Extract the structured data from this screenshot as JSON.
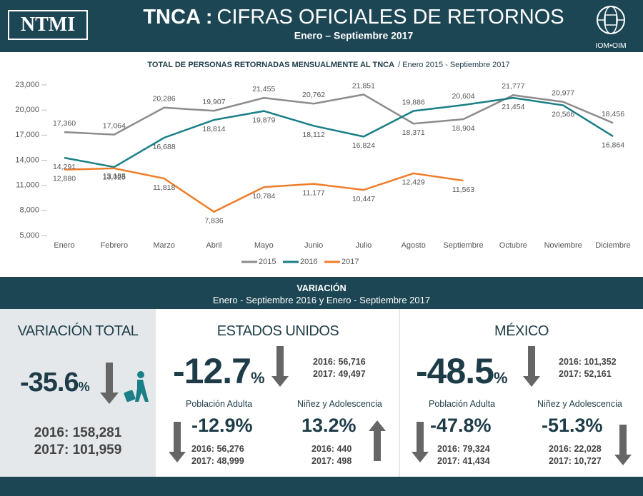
{
  "header": {
    "logo": "NTMI",
    "title_bold": "TNCA :",
    "title_light": "CIFRAS OFICIALES DE RETORNOS",
    "subtitle": "Enero – Septiembre 2017",
    "partner_logo": "IOM•OIM"
  },
  "chart_data": {
    "type": "line",
    "title": "TOTAL DE PERSONAS RETORNADAS MENSUALMENTE AL TNCA",
    "subtitle": "/ Enero 2015 - Septiembre 2017",
    "categories": [
      "Enero",
      "Febrero",
      "Marzo",
      "Abril",
      "Mayo",
      "Junio",
      "Julio",
      "Agosto",
      "Septiembre",
      "Octubre",
      "Noviembre",
      "Diciembre"
    ],
    "series": [
      {
        "name": "2015",
        "color": "#8c8c8c",
        "values": [
          17360,
          17064,
          20286,
          19907,
          21455,
          20762,
          21851,
          18371,
          18904,
          21777,
          20977,
          18456
        ],
        "value_labels": [
          "17,360",
          "17,064",
          "20,286",
          "19,907",
          "21,455",
          "20,762",
          "21,851",
          "18,371",
          "18,904",
          "21,777",
          "20,977",
          "18,456"
        ]
      },
      {
        "name": "2016",
        "color": "#1a7f86",
        "values": [
          14291,
          13183,
          16688,
          18814,
          19879,
          18112,
          16824,
          19886,
          20604,
          21454,
          20566,
          16864
        ],
        "value_labels": [
          "14,291",
          "13,183",
          "16,688",
          "18,814",
          "19,879",
          "18,112",
          "16,824",
          "19,886",
          "20,604",
          "21,454",
          "20,566",
          "16,864"
        ]
      },
      {
        "name": "2017",
        "color": "#ee7d2b",
        "values": [
          12880,
          13025,
          11818,
          7836,
          10784,
          11177,
          10447,
          12429,
          11563,
          null,
          null,
          null
        ],
        "value_labels": [
          "12,880",
          "13,025",
          "11,818",
          "7,836",
          "10,784",
          "11,177",
          "10,447",
          "12,429",
          "11,563",
          null,
          null,
          null
        ]
      }
    ],
    "ylim": [
      5000,
      23000
    ],
    "yticks": [
      {
        "value": 5000,
        "label": "5,000"
      },
      {
        "value": 8000,
        "label": "8,000"
      },
      {
        "value": 11000,
        "label": "11,000"
      },
      {
        "value": 14000,
        "label": "14,000"
      },
      {
        "value": 17000,
        "label": "17,000"
      },
      {
        "value": 20000,
        "label": "20,000"
      },
      {
        "value": 23000,
        "label": "23,000"
      }
    ],
    "grid": false,
    "legend": "bottom"
  },
  "variation": {
    "title": "VARIACIÓN",
    "subtitle": "Enero - Septiembre  2016 y Enero - Septiembre 2017",
    "total": {
      "heading": "VARIACIÓN TOTAL",
      "change": "-35.6",
      "unit": "%",
      "y2016": "2016: 158,281",
      "y2017": "2017: 101,959"
    },
    "usa": {
      "heading": "ESTADOS UNIDOS",
      "change": "-12.7",
      "unit": "%",
      "y2016": "2016: 56,716",
      "y2017": "2017: 49,497",
      "adults": {
        "label": "Población Adulta",
        "change": "-12.9%",
        "y2016": "2016: 56,276",
        "y2017": "2017: 48,999"
      },
      "minors": {
        "label": "Niñez y Adolescencia",
        "change": "13.2%",
        "y2016": "2016: 440",
        "y2017": "2017: 498"
      }
    },
    "mexico": {
      "heading": "MÉXICO",
      "change": "-48.5",
      "unit": "%",
      "y2016": "2016: 101,352",
      "y2017": "2017: 52,161",
      "adults": {
        "label": "Población Adulta",
        "change": "-47.8%",
        "y2016": "2016: 79,324",
        "y2017": "2017: 41,434"
      },
      "minors": {
        "label": "Niñez y Adolescencia",
        "change": "-51.3%",
        "y2016": "2016: 22,028",
        "y2017": "2017: 10,727"
      }
    }
  }
}
